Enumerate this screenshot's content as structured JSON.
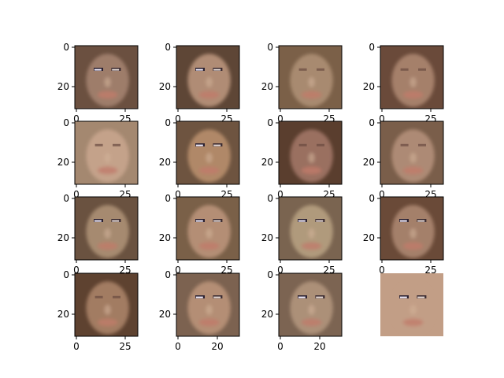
{
  "figure": {
    "background": "#ffffff",
    "grid": {
      "rows": 4,
      "cols": 4
    },
    "panels": [
      {
        "id": 1,
        "tint": "#9e7d6a",
        "hair": "#6b5040",
        "eyes": true,
        "x_ticks": [
          "0",
          "25"
        ],
        "y_ticks": [
          "0",
          "20"
        ],
        "has_axes": true
      },
      {
        "id": 2,
        "tint": "#b08c74",
        "hair": "#5e4636",
        "eyes": true,
        "x_ticks": [
          "0",
          "25"
        ],
        "y_ticks": [
          "0",
          "20"
        ],
        "has_axes": true
      },
      {
        "id": 3,
        "tint": "#a88a70",
        "hair": "#7b6048",
        "eyes": false,
        "x_ticks": [
          "0",
          "25"
        ],
        "y_ticks": [
          "0",
          "20"
        ],
        "has_axes": true
      },
      {
        "id": 4,
        "tint": "#a5806a",
        "hair": "#6a4a3a",
        "eyes": false,
        "x_ticks": [
          "0",
          "25"
        ],
        "y_ticks": [
          "0",
          "20"
        ],
        "has_axes": true
      },
      {
        "id": 5,
        "tint": "#c4a28a",
        "hair": "#a48870",
        "eyes": false,
        "x_ticks": [
          "0",
          "25"
        ],
        "y_ticks": [
          "0",
          "20"
        ],
        "has_axes": true
      },
      {
        "id": 6,
        "tint": "#b08868",
        "hair": "#6e5440",
        "eyes": true,
        "x_ticks": [
          "0",
          "25"
        ],
        "y_ticks": [
          "0",
          "20"
        ],
        "has_axes": true
      },
      {
        "id": 7,
        "tint": "#9a7060",
        "hair": "#5a3e2e",
        "eyes": false,
        "x_ticks": [
          "0",
          "25"
        ],
        "y_ticks": [
          "0",
          "20"
        ],
        "has_axes": true
      },
      {
        "id": 8,
        "tint": "#ad8a74",
        "hair": "#7a5e4a",
        "eyes": false,
        "x_ticks": [
          "0",
          "25"
        ],
        "y_ticks": [
          "0",
          "20"
        ],
        "has_axes": true
      },
      {
        "id": 9,
        "tint": "#a68a70",
        "hair": "#6a5240",
        "eyes": true,
        "x_ticks": [
          "0",
          "25"
        ],
        "y_ticks": [
          "0",
          "20"
        ],
        "has_axes": true
      },
      {
        "id": 10,
        "tint": "#b48e74",
        "hair": "#7a6048",
        "eyes": true,
        "x_ticks": [
          "0",
          "25"
        ],
        "y_ticks": [
          "0",
          "20"
        ],
        "has_axes": true
      },
      {
        "id": 11,
        "tint": "#b09a7c",
        "hair": "#7a6450",
        "eyes": true,
        "x_ticks": [
          "0",
          "25"
        ],
        "y_ticks": [
          "0",
          "20"
        ],
        "has_axes": true
      },
      {
        "id": 12,
        "tint": "#a4806a",
        "hair": "#6a4a38",
        "eyes": true,
        "x_ticks": [
          "0",
          "25"
        ],
        "y_ticks": [
          "0",
          "20"
        ],
        "has_axes": true
      },
      {
        "id": 13,
        "tint": "#a27c62",
        "hair": "#5e4230",
        "eyes": false,
        "x_ticks": [
          "0",
          "25"
        ],
        "y_ticks": [
          "0",
          "20"
        ],
        "has_axes": true
      },
      {
        "id": 14,
        "tint": "#b48e74",
        "hair": "#7c6250",
        "eyes": true,
        "x_ticks": [
          "0",
          "20"
        ],
        "y_ticks": [
          "0",
          "20"
        ],
        "has_axes": true
      },
      {
        "id": 15,
        "tint": "#ac9078",
        "hair": "#7c6452",
        "eyes": true,
        "x_ticks": [
          "0",
          "20"
        ],
        "y_ticks": [
          "0",
          "20"
        ],
        "has_axes": true
      },
      {
        "id": 16,
        "tint": "#c29e86",
        "hair": "#c29e86",
        "eyes": true,
        "x_ticks": [],
        "y_ticks": [],
        "has_axes": false
      }
    ]
  }
}
